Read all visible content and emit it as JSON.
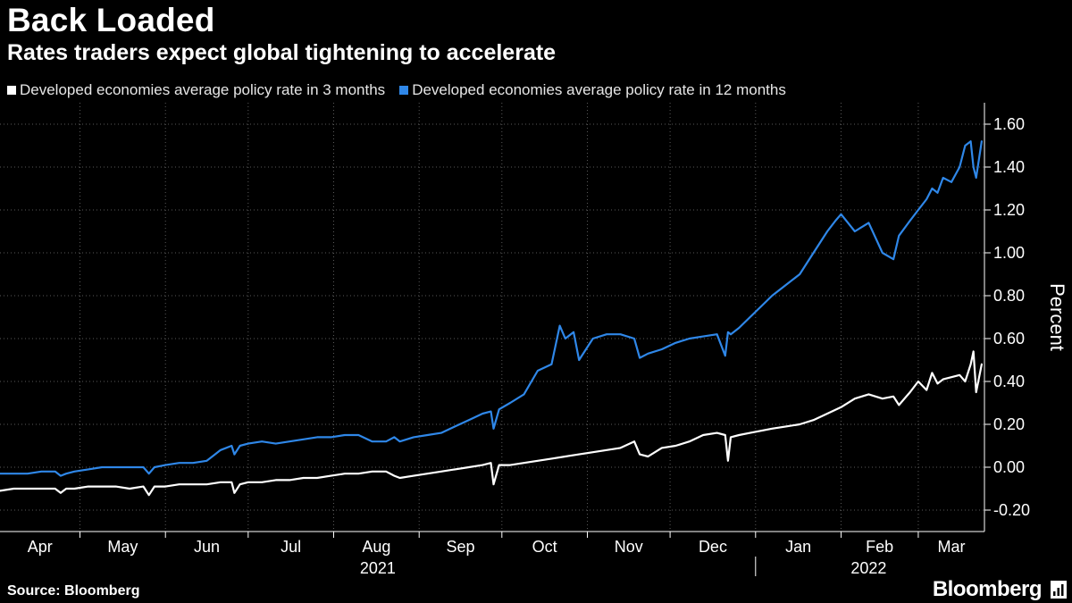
{
  "header": {
    "title": "Back Loaded",
    "subtitle": "Rates traders expect global tightening to accelerate"
  },
  "footer": {
    "source": "Source: Bloomberg",
    "brand": "Bloomberg"
  },
  "colors": {
    "background": "#000000",
    "series_3m": "#ffffff",
    "series_12m": "#2f87e8",
    "grid": "#5a5a5a"
  },
  "chart_data": {
    "type": "line",
    "title": "Back Loaded",
    "subtitle": "Rates traders expect global tightening to accelerate",
    "ylabel": "Percent",
    "xlabel": "",
    "ylim": [
      -0.3,
      1.7
    ],
    "yticks": [
      -0.2,
      0.0,
      0.2,
      0.4,
      0.6,
      0.8,
      1.0,
      1.2,
      1.4,
      1.6
    ],
    "ytick_labels": [
      "-0.20",
      "0.00",
      "0.20",
      "0.40",
      "0.60",
      "0.80",
      "1.00",
      "1.20",
      "1.40",
      "1.60"
    ],
    "xlim": [
      0,
      357
    ],
    "months": [
      {
        "label": "Apr",
        "start": 0,
        "end": 29
      },
      {
        "label": "May",
        "start": 29,
        "end": 60
      },
      {
        "label": "Jun",
        "start": 60,
        "end": 90
      },
      {
        "label": "Jul",
        "start": 90,
        "end": 121
      },
      {
        "label": "Aug",
        "start": 121,
        "end": 152
      },
      {
        "label": "Sep",
        "start": 152,
        "end": 182
      },
      {
        "label": "Oct",
        "start": 182,
        "end": 213
      },
      {
        "label": "Nov",
        "start": 213,
        "end": 243
      },
      {
        "label": "Dec",
        "start": 243,
        "end": 274
      },
      {
        "label": "Jan",
        "start": 274,
        "end": 305
      },
      {
        "label": "Feb",
        "start": 305,
        "end": 333
      },
      {
        "label": "Mar",
        "start": 333,
        "end": 357
      }
    ],
    "years": [
      {
        "label": "2021",
        "center": 137
      },
      {
        "label": "2022",
        "center": 315
      }
    ],
    "year_divider": 274,
    "legend_position": "top-left",
    "series": [
      {
        "name": "Developed economies average policy rate in 3 months",
        "color": "#ffffff",
        "x": [
          0,
          5,
          10,
          15,
          20,
          22,
          24,
          27,
          32,
          37,
          42,
          47,
          52,
          54,
          56,
          60,
          65,
          70,
          75,
          80,
          84,
          85,
          87,
          90,
          95,
          100,
          105,
          110,
          115,
          120,
          125,
          130,
          135,
          140,
          143,
          145,
          150,
          155,
          160,
          165,
          170,
          175,
          178,
          179,
          181,
          185,
          190,
          195,
          200,
          205,
          210,
          215,
          220,
          225,
          230,
          232,
          235,
          240,
          245,
          250,
          255,
          260,
          263,
          264,
          265,
          268,
          272,
          276,
          280,
          285,
          290,
          295,
          300,
          305,
          310,
          315,
          320,
          324,
          326,
          330,
          333,
          336,
          338,
          340,
          342,
          345,
          348,
          350,
          352,
          353,
          354,
          356
        ],
        "values": [
          -0.11,
          -0.1,
          -0.1,
          -0.1,
          -0.1,
          -0.12,
          -0.1,
          -0.1,
          -0.09,
          -0.09,
          -0.09,
          -0.1,
          -0.09,
          -0.13,
          -0.09,
          -0.09,
          -0.08,
          -0.08,
          -0.08,
          -0.07,
          -0.07,
          -0.12,
          -0.08,
          -0.07,
          -0.07,
          -0.06,
          -0.06,
          -0.05,
          -0.05,
          -0.04,
          -0.03,
          -0.03,
          -0.02,
          -0.02,
          -0.04,
          -0.05,
          -0.04,
          -0.03,
          -0.02,
          -0.01,
          0.0,
          0.01,
          0.02,
          -0.08,
          0.01,
          0.01,
          0.02,
          0.03,
          0.04,
          0.05,
          0.06,
          0.07,
          0.08,
          0.09,
          0.12,
          0.06,
          0.05,
          0.09,
          0.1,
          0.12,
          0.15,
          0.16,
          0.15,
          0.03,
          0.14,
          0.15,
          0.16,
          0.17,
          0.18,
          0.19,
          0.2,
          0.22,
          0.25,
          0.28,
          0.32,
          0.34,
          0.32,
          0.33,
          0.29,
          0.35,
          0.4,
          0.36,
          0.44,
          0.39,
          0.41,
          0.42,
          0.43,
          0.4,
          0.48,
          0.54,
          0.35,
          0.48
        ]
      },
      {
        "name": "Developed economies average policy rate in 12 months",
        "color": "#2f87e8",
        "x": [
          0,
          5,
          10,
          15,
          20,
          22,
          24,
          27,
          32,
          37,
          42,
          47,
          52,
          54,
          56,
          60,
          65,
          70,
          75,
          80,
          84,
          85,
          87,
          90,
          95,
          100,
          105,
          110,
          115,
          120,
          125,
          130,
          135,
          140,
          143,
          145,
          150,
          155,
          160,
          165,
          170,
          175,
          178,
          179,
          181,
          185,
          190,
          195,
          200,
          203,
          205,
          208,
          210,
          215,
          220,
          225,
          230,
          232,
          235,
          240,
          245,
          250,
          255,
          260,
          263,
          264,
          265,
          268,
          272,
          276,
          280,
          285,
          290,
          295,
          300,
          303,
          305,
          310,
          315,
          320,
          324,
          326,
          330,
          333,
          336,
          338,
          340,
          342,
          345,
          348,
          350,
          352,
          353,
          354,
          356
        ],
        "values": [
          -0.03,
          -0.03,
          -0.03,
          -0.02,
          -0.02,
          -0.04,
          -0.03,
          -0.02,
          -0.01,
          0.0,
          0.0,
          0.0,
          0.0,
          -0.03,
          0.0,
          0.01,
          0.02,
          0.02,
          0.03,
          0.08,
          0.1,
          0.06,
          0.1,
          0.11,
          0.12,
          0.11,
          0.12,
          0.13,
          0.14,
          0.14,
          0.15,
          0.15,
          0.12,
          0.12,
          0.14,
          0.12,
          0.14,
          0.15,
          0.16,
          0.19,
          0.22,
          0.25,
          0.26,
          0.18,
          0.27,
          0.3,
          0.34,
          0.45,
          0.48,
          0.66,
          0.6,
          0.63,
          0.5,
          0.6,
          0.62,
          0.62,
          0.6,
          0.51,
          0.53,
          0.55,
          0.58,
          0.6,
          0.61,
          0.62,
          0.52,
          0.63,
          0.62,
          0.65,
          0.7,
          0.75,
          0.8,
          0.85,
          0.9,
          1.0,
          1.1,
          1.15,
          1.18,
          1.1,
          1.14,
          1.0,
          0.97,
          1.08,
          1.15,
          1.2,
          1.25,
          1.3,
          1.28,
          1.35,
          1.33,
          1.4,
          1.5,
          1.52,
          1.4,
          1.35,
          1.52
        ]
      }
    ]
  }
}
